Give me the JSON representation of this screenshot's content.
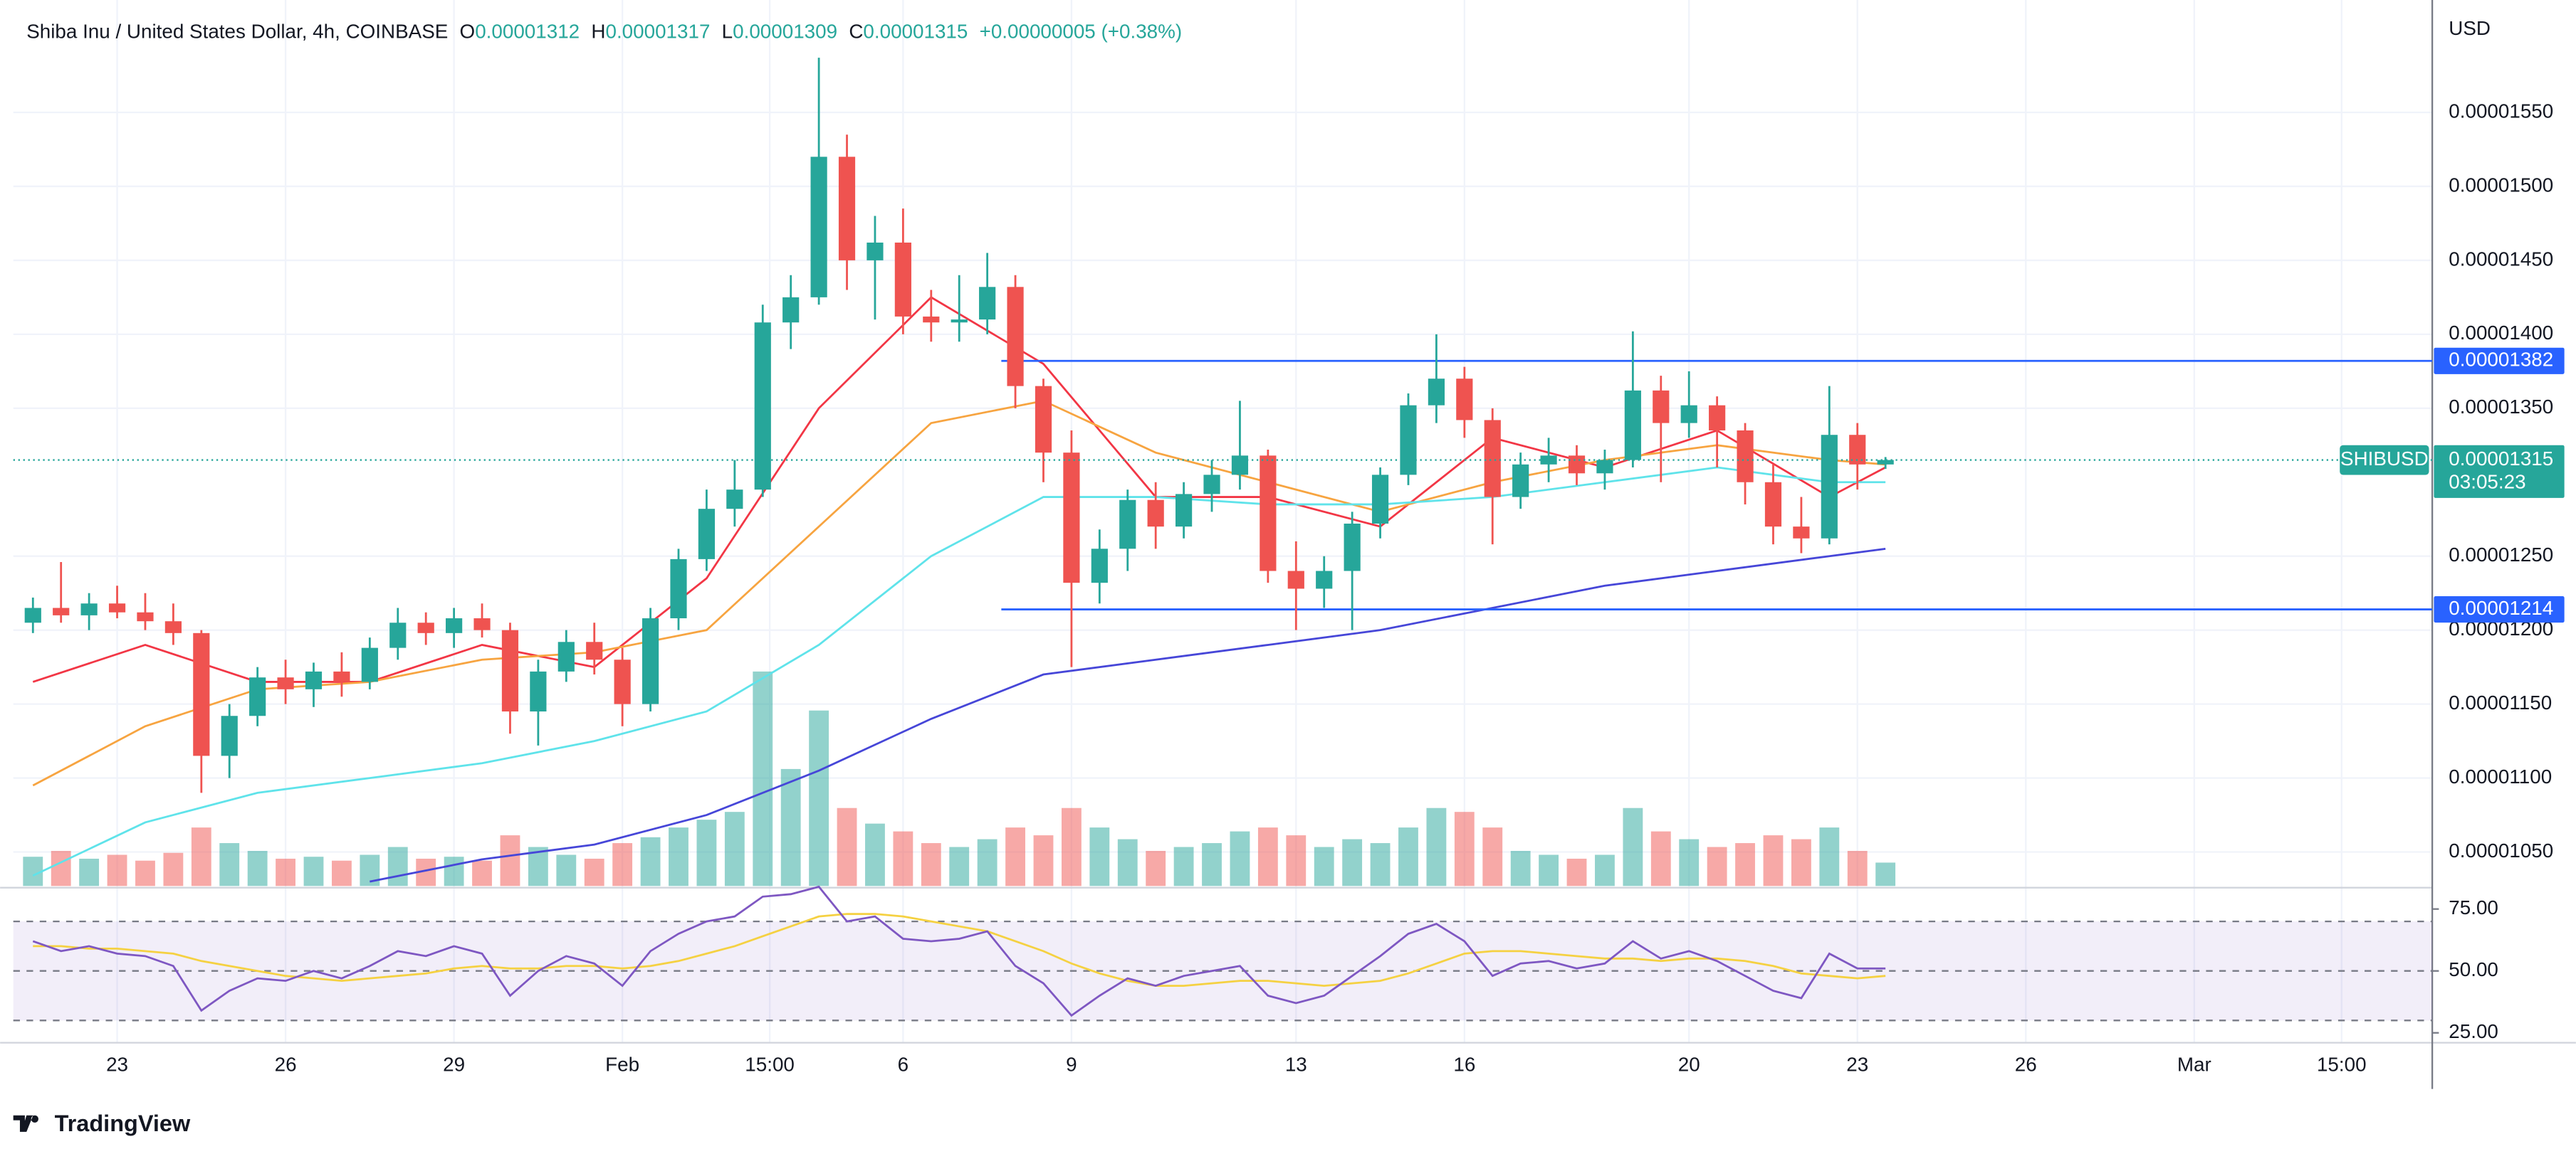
{
  "chart_data": {
    "type": "candlestick",
    "title": "Shiba Inu / United States Dollar, 4h, COINBASE",
    "ohlc_legend": [
      {
        "key": "O",
        "value": 1.312e-05
      },
      {
        "key": "H",
        "value": 1.317e-05
      },
      {
        "key": "L",
        "value": 1.309e-05
      },
      {
        "key": "C",
        "value": 1.315e-05
      }
    ],
    "change": "+0.00000005 (+0.38%)",
    "y_unit": "USD",
    "up_color": "#26a69a",
    "down_color": "#ef5350",
    "grid": true,
    "xlim": [
      -1.85,
      41.24
    ],
    "xticks": [
      {
        "value": 0,
        "label": "23"
      },
      {
        "value": 3,
        "label": "26"
      },
      {
        "value": 6,
        "label": "29"
      },
      {
        "value": 9,
        "label": "Feb"
      },
      {
        "value": 11.625,
        "label": "15:00"
      },
      {
        "value": 14,
        "label": "6"
      },
      {
        "value": 17,
        "label": "9"
      },
      {
        "value": 21,
        "label": "13"
      },
      {
        "value": 24,
        "label": "16"
      },
      {
        "value": 28,
        "label": "20"
      },
      {
        "value": 31,
        "label": "23"
      },
      {
        "value": 34,
        "label": "26"
      },
      {
        "value": 37,
        "label": "Mar"
      },
      {
        "value": 39.625,
        "label": "15:00"
      }
    ],
    "ylim": [
      1.027e-05,
      1.626e-05
    ],
    "yticks": [
      {
        "value": 1.05e-05,
        "label": "0.00001050"
      },
      {
        "value": 1.1e-05,
        "label": "0.00001100"
      },
      {
        "value": 1.15e-05,
        "label": "0.00001150"
      },
      {
        "value": 1.2e-05,
        "label": "0.00001200"
      },
      {
        "value": 1.25e-05,
        "label": "0.00001250"
      },
      {
        "value": 1.35e-05,
        "label": "0.00001350"
      },
      {
        "value": 1.4e-05,
        "label": "0.00001400"
      },
      {
        "value": 1.45e-05,
        "label": "0.00001450"
      },
      {
        "value": 1.5e-05,
        "label": "0.00001500"
      },
      {
        "value": 1.55e-05,
        "label": "0.00001550"
      }
    ],
    "x": [
      -1.5,
      -1,
      -0.5,
      0,
      0.5,
      1,
      1.5,
      2,
      2.5,
      3,
      3.5,
      4,
      4.5,
      5,
      5.5,
      6,
      6.5,
      7,
      7.5,
      8,
      8.5,
      9,
      9.5,
      10,
      10.5,
      11,
      11.5,
      12,
      12.5,
      13,
      13.5,
      14,
      14.5,
      15,
      15.5,
      16,
      16.5,
      17,
      17.5,
      18,
      18.5,
      19,
      19.5,
      20,
      20.5,
      21,
      21.5,
      22,
      22.5,
      23,
      23.5,
      24,
      24.5,
      25,
      25.5,
      26,
      26.5,
      27,
      27.5,
      28,
      28.5,
      29,
      29.5,
      30,
      30.5,
      31,
      31.5
    ],
    "open": [
      1.205e-05,
      1.215e-05,
      1.21e-05,
      1.218e-05,
      1.212e-05,
      1.206e-05,
      1.198e-05,
      1.115e-05,
      1.142e-05,
      1.168e-05,
      1.16e-05,
      1.172e-05,
      1.165e-05,
      1.188e-05,
      1.205e-05,
      1.198e-05,
      1.208e-05,
      1.2e-05,
      1.145e-05,
      1.172e-05,
      1.192e-05,
      1.18e-05,
      1.15e-05,
      1.208e-05,
      1.248e-05,
      1.282e-05,
      1.295e-05,
      1.408e-05,
      1.425e-05,
      1.52e-05,
      1.45e-05,
      1.462e-05,
      1.412e-05,
      1.408e-05,
      1.41e-05,
      1.432e-05,
      1.365e-05,
      1.32e-05,
      1.232e-05,
      1.255e-05,
      1.288e-05,
      1.27e-05,
      1.292e-05,
      1.305e-05,
      1.318e-05,
      1.24e-05,
      1.228e-05,
      1.24e-05,
      1.272e-05,
      1.305e-05,
      1.352e-05,
      1.37e-05,
      1.342e-05,
      1.29e-05,
      1.312e-05,
      1.318e-05,
      1.306e-05,
      1.315e-05,
      1.362e-05,
      1.34e-05,
      1.352e-05,
      1.335e-05,
      1.3e-05,
      1.27e-05,
      1.262e-05,
      1.332e-05,
      1.312e-05
    ],
    "high": [
      1.222e-05,
      1.246e-05,
      1.225e-05,
      1.23e-05,
      1.225e-05,
      1.218e-05,
      1.2e-05,
      1.15e-05,
      1.175e-05,
      1.18e-05,
      1.178e-05,
      1.185e-05,
      1.195e-05,
      1.215e-05,
      1.212e-05,
      1.215e-05,
      1.218e-05,
      1.205e-05,
      1.18e-05,
      1.2e-05,
      1.205e-05,
      1.188e-05,
      1.215e-05,
      1.255e-05,
      1.295e-05,
      1.315e-05,
      1.42e-05,
      1.44e-05,
      1.587e-05,
      1.535e-05,
      1.48e-05,
      1.485e-05,
      1.43e-05,
      1.44e-05,
      1.455e-05,
      1.44e-05,
      1.37e-05,
      1.335e-05,
      1.268e-05,
      1.295e-05,
      1.3e-05,
      1.3e-05,
      1.315e-05,
      1.355e-05,
      1.322e-05,
      1.26e-05,
      1.25e-05,
      1.28e-05,
      1.31e-05,
      1.36e-05,
      1.4e-05,
      1.378e-05,
      1.35e-05,
      1.32e-05,
      1.33e-05,
      1.325e-05,
      1.322e-05,
      1.402e-05,
      1.372e-05,
      1.375e-05,
      1.358e-05,
      1.34e-05,
      1.312e-05,
      1.29e-05,
      1.365e-05,
      1.34e-05,
      1.317e-05
    ],
    "low": [
      1.198e-05,
      1.205e-05,
      1.2e-05,
      1.208e-05,
      1.2e-05,
      1.19e-05,
      1.09e-05,
      1.1e-05,
      1.135e-05,
      1.15e-05,
      1.148e-05,
      1.155e-05,
      1.16e-05,
      1.18e-05,
      1.19e-05,
      1.188e-05,
      1.195e-05,
      1.13e-05,
      1.122e-05,
      1.165e-05,
      1.17e-05,
      1.135e-05,
      1.145e-05,
      1.2e-05,
      1.24e-05,
      1.27e-05,
      1.29e-05,
      1.39e-05,
      1.42e-05,
      1.43e-05,
      1.41e-05,
      1.4e-05,
      1.395e-05,
      1.395e-05,
      1.4e-05,
      1.35e-05,
      1.3e-05,
      1.175e-05,
      1.218e-05,
      1.24e-05,
      1.255e-05,
      1.262e-05,
      1.28e-05,
      1.295e-05,
      1.232e-05,
      1.2e-05,
      1.215e-05,
      1.2e-05,
      1.262e-05,
      1.298e-05,
      1.34e-05,
      1.33e-05,
      1.258e-05,
      1.282e-05,
      1.3e-05,
      1.298e-05,
      1.295e-05,
      1.31e-05,
      1.3e-05,
      1.33e-05,
      1.31e-05,
      1.285e-05,
      1.258e-05,
      1.252e-05,
      1.258e-05,
      1.295e-05,
      1.309e-05
    ],
    "close": [
      1.215e-05,
      1.21e-05,
      1.218e-05,
      1.212e-05,
      1.206e-05,
      1.198e-05,
      1.115e-05,
      1.142e-05,
      1.168e-05,
      1.16e-05,
      1.172e-05,
      1.165e-05,
      1.188e-05,
      1.205e-05,
      1.198e-05,
      1.208e-05,
      1.2e-05,
      1.145e-05,
      1.172e-05,
      1.192e-05,
      1.18e-05,
      1.15e-05,
      1.208e-05,
      1.248e-05,
      1.282e-05,
      1.295e-05,
      1.408e-05,
      1.425e-05,
      1.52e-05,
      1.45e-05,
      1.462e-05,
      1.412e-05,
      1.408e-05,
      1.41e-05,
      1.432e-05,
      1.365e-05,
      1.32e-05,
      1.232e-05,
      1.255e-05,
      1.288e-05,
      1.27e-05,
      1.292e-05,
      1.305e-05,
      1.318e-05,
      1.24e-05,
      1.228e-05,
      1.24e-05,
      1.272e-05,
      1.305e-05,
      1.352e-05,
      1.37e-05,
      1.342e-05,
      1.29e-05,
      1.312e-05,
      1.318e-05,
      1.306e-05,
      1.315e-05,
      1.362e-05,
      1.34e-05,
      1.352e-05,
      1.335e-05,
      1.3e-05,
      1.27e-05,
      1.262e-05,
      1.332e-05,
      1.312e-05,
      1.315e-05
    ],
    "volume": [
      15,
      18,
      14,
      16,
      13,
      17,
      30,
      22,
      18,
      14,
      15,
      13,
      16,
      20,
      14,
      15,
      13,
      26,
      20,
      16,
      14,
      22,
      25,
      30,
      34,
      38,
      110,
      60,
      90,
      40,
      32,
      28,
      22,
      20,
      24,
      30,
      26,
      40,
      30,
      24,
      18,
      20,
      22,
      28,
      30,
      26,
      20,
      24,
      22,
      30,
      40,
      38,
      30,
      18,
      16,
      14,
      16,
      40,
      28,
      24,
      20,
      22,
      26,
      24,
      30,
      18,
      12
    ],
    "moving_averages": {
      "x": [
        -1.5,
        0.5,
        2.5,
        4.5,
        6.5,
        8.5,
        10.5,
        12.5,
        14.5,
        16.5,
        18.5,
        20.5,
        22.5,
        24.5,
        26.5,
        28.5,
        30.5,
        31.5
      ],
      "series": [
        {
          "color": "#f23645",
          "values": [
            1.165e-05,
            1.19e-05,
            1.165e-05,
            1.165e-05,
            1.19e-05,
            1.175e-05,
            1.235e-05,
            1.35e-05,
            1.425e-05,
            1.38e-05,
            1.29e-05,
            1.29e-05,
            1.27e-05,
            1.33e-05,
            1.31e-05,
            1.335e-05,
            1.29e-05,
            1.31e-05
          ]
        },
        {
          "color": "#f7a440",
          "values": [
            1.095e-05,
            1.135e-05,
            1.16e-05,
            1.165e-05,
            1.18e-05,
            1.185e-05,
            1.2e-05,
            1.27e-05,
            1.34e-05,
            1.355e-05,
            1.32e-05,
            1.3e-05,
            1.28e-05,
            1.3e-05,
            1.315e-05,
            1.325e-05,
            1.315e-05,
            1.312e-05
          ]
        },
        {
          "color": "#5fe3ea",
          "values": [
            1.034e-05,
            1.07e-05,
            1.09e-05,
            1.1e-05,
            1.11e-05,
            1.125e-05,
            1.145e-05,
            1.19e-05,
            1.25e-05,
            1.29e-05,
            1.29e-05,
            1.285e-05,
            1.285e-05,
            1.29e-05,
            1.3e-05,
            1.31e-05,
            1.3e-05,
            1.3e-05
          ]
        },
        {
          "color": "#4646d8",
          "values": [
            null,
            null,
            null,
            1.03e-05,
            1.045e-05,
            1.055e-05,
            1.075e-05,
            1.105e-05,
            1.14e-05,
            1.17e-05,
            1.18e-05,
            1.19e-05,
            1.2e-05,
            1.215e-05,
            1.23e-05,
            1.24e-05,
            1.25e-05,
            1.255e-05
          ]
        }
      ]
    },
    "hlines": [
      {
        "value": 1.382e-05,
        "x_start": 15.75,
        "color": "#2962ff"
      },
      {
        "value": 1.214e-05,
        "x_start": 15.75,
        "color": "#2962ff"
      }
    ],
    "last_price": {
      "symbol": "SHIBUSD",
      "value": 1.315e-05,
      "countdown": "03:05:23",
      "color": "#26a69a"
    },
    "rsi": {
      "color": "#7e57c2",
      "ma_color": "#f5d142",
      "ylim": [
        21,
        82.3
      ],
      "yticks": [
        {
          "value": 75,
          "label": "75.00"
        },
        {
          "value": 50,
          "label": "50.00"
        },
        {
          "value": 25,
          "label": "25.00"
        }
      ],
      "levels": [
        30,
        50,
        70
      ],
      "values": [
        62,
        58,
        60,
        57,
        56,
        52,
        34,
        42,
        47,
        46,
        50,
        47,
        52,
        58,
        56,
        60,
        57,
        40,
        50,
        56,
        53,
        44,
        58,
        65,
        70,
        72,
        80,
        81,
        84,
        70,
        72,
        63,
        62,
        63,
        66,
        52,
        45,
        32,
        40,
        47,
        44,
        48,
        50,
        52,
        40,
        37,
        40,
        48,
        56,
        65,
        69,
        62,
        48,
        53,
        54,
        51,
        53,
        62,
        55,
        58,
        54,
        48,
        42,
        39,
        57,
        51,
        51
      ],
      "ma_values": [
        60,
        60,
        59,
        59,
        58,
        57,
        54,
        52,
        50,
        48,
        47,
        46,
        47,
        48,
        49,
        51,
        52,
        51,
        51,
        52,
        52,
        51,
        52,
        54,
        57,
        60,
        64,
        68,
        72,
        73,
        73,
        72,
        70,
        68,
        66,
        62,
        58,
        53,
        49,
        46,
        44,
        44,
        45,
        46,
        46,
        45,
        44,
        45,
        46,
        49,
        53,
        57,
        58,
        58,
        57,
        56,
        55,
        55,
        54,
        55,
        55,
        54,
        52,
        49,
        48,
        47,
        48
      ]
    }
  },
  "branding": "TradingView"
}
